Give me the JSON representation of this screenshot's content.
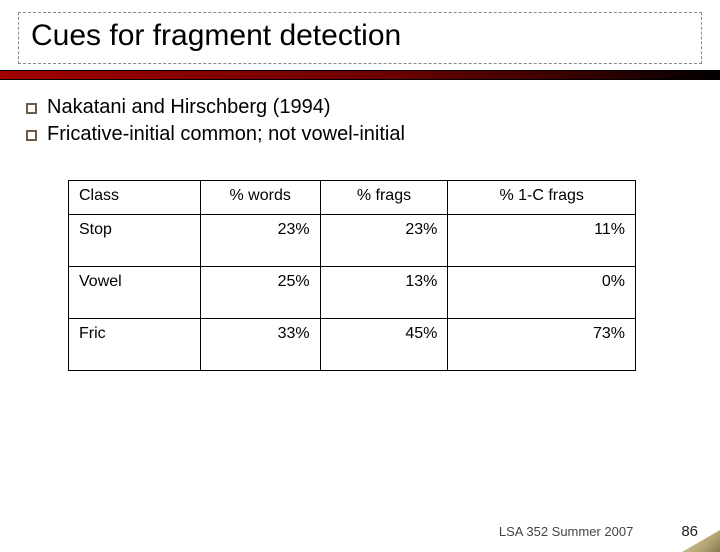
{
  "title": "Cues for fragment detection",
  "bullets": [
    "Nakatani and Hirschberg (1994)",
    "Fricative-initial common; not vowel-initial"
  ],
  "table": {
    "headers": [
      "Class",
      "% words",
      "% frags",
      "% 1-C frags"
    ],
    "rows": [
      [
        "Stop",
        "23%",
        "23%",
        "11%"
      ],
      [
        "Vowel",
        "25%",
        "13%",
        "0%"
      ],
      [
        "Fric",
        "33%",
        "45%",
        "73%"
      ]
    ]
  },
  "footer": {
    "text": "LSA 352 Summer 2007",
    "page": "86"
  }
}
